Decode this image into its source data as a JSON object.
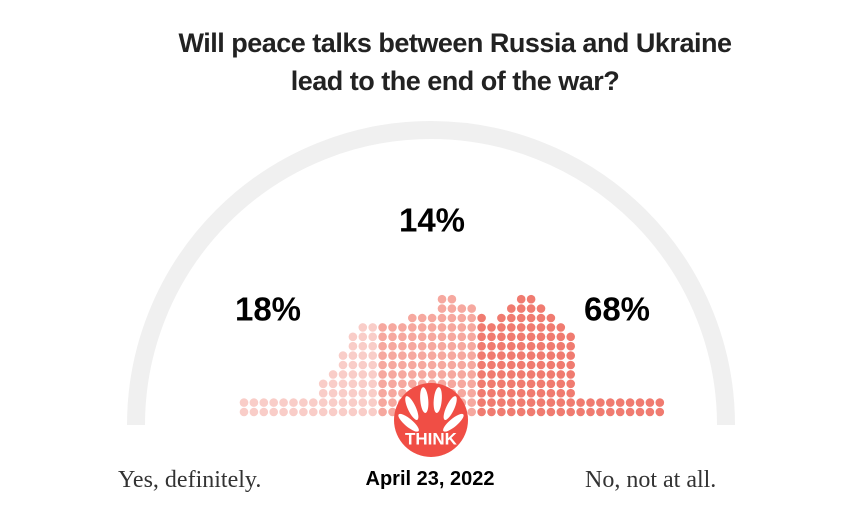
{
  "chart_data": {
    "type": "dot-distribution",
    "title": "Will peace talks between Russia and Ukraine lead to the end of the war?",
    "values": [
      18,
      14,
      68
    ],
    "value_labels": [
      "18%",
      "14%",
      "68%"
    ],
    "series": [
      {
        "color": "#f9cdc8",
        "dots": [
          2,
          2,
          2,
          2,
          2,
          2,
          2,
          2,
          4,
          5,
          7,
          9,
          10,
          10
        ]
      },
      {
        "color": "#f6a89f",
        "dots": [
          10,
          10,
          10,
          11,
          11,
          11,
          13,
          13,
          12,
          12
        ]
      },
      {
        "color": "#f07b70",
        "dots": [
          11,
          10,
          11,
          12,
          13,
          13,
          12,
          11,
          10,
          9,
          2,
          2,
          2,
          2,
          2,
          2,
          2,
          2,
          2
        ]
      }
    ],
    "left_label": "Yes, definitely.",
    "right_label": "No, not at all.",
    "date": "April 23, 2022",
    "logo_text": "THINK"
  }
}
